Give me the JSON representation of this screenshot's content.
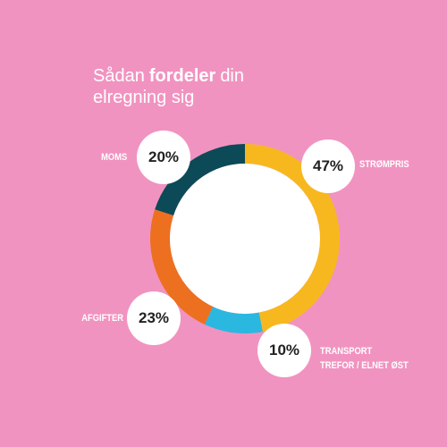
{
  "chart_data": {
    "type": "donut",
    "title": [
      {
        "text": "Sådan",
        "bold": false
      },
      {
        "text": "fordeler",
        "bold": true
      },
      {
        "text": "din elregning sig",
        "bold": false
      }
    ],
    "categories": [
      "STRØMPRIS",
      "TRANSPORT\nTREFOR / ELNET ØST",
      "AFGIFTER",
      "MOMS"
    ],
    "values": [
      47,
      10,
      23,
      20
    ],
    "value_labels": [
      "47%",
      "10%",
      "23%",
      "20%"
    ],
    "colors": [
      "#f7b81f",
      "#2bb8e0",
      "#ec7020",
      "#0d4a58"
    ]
  }
}
